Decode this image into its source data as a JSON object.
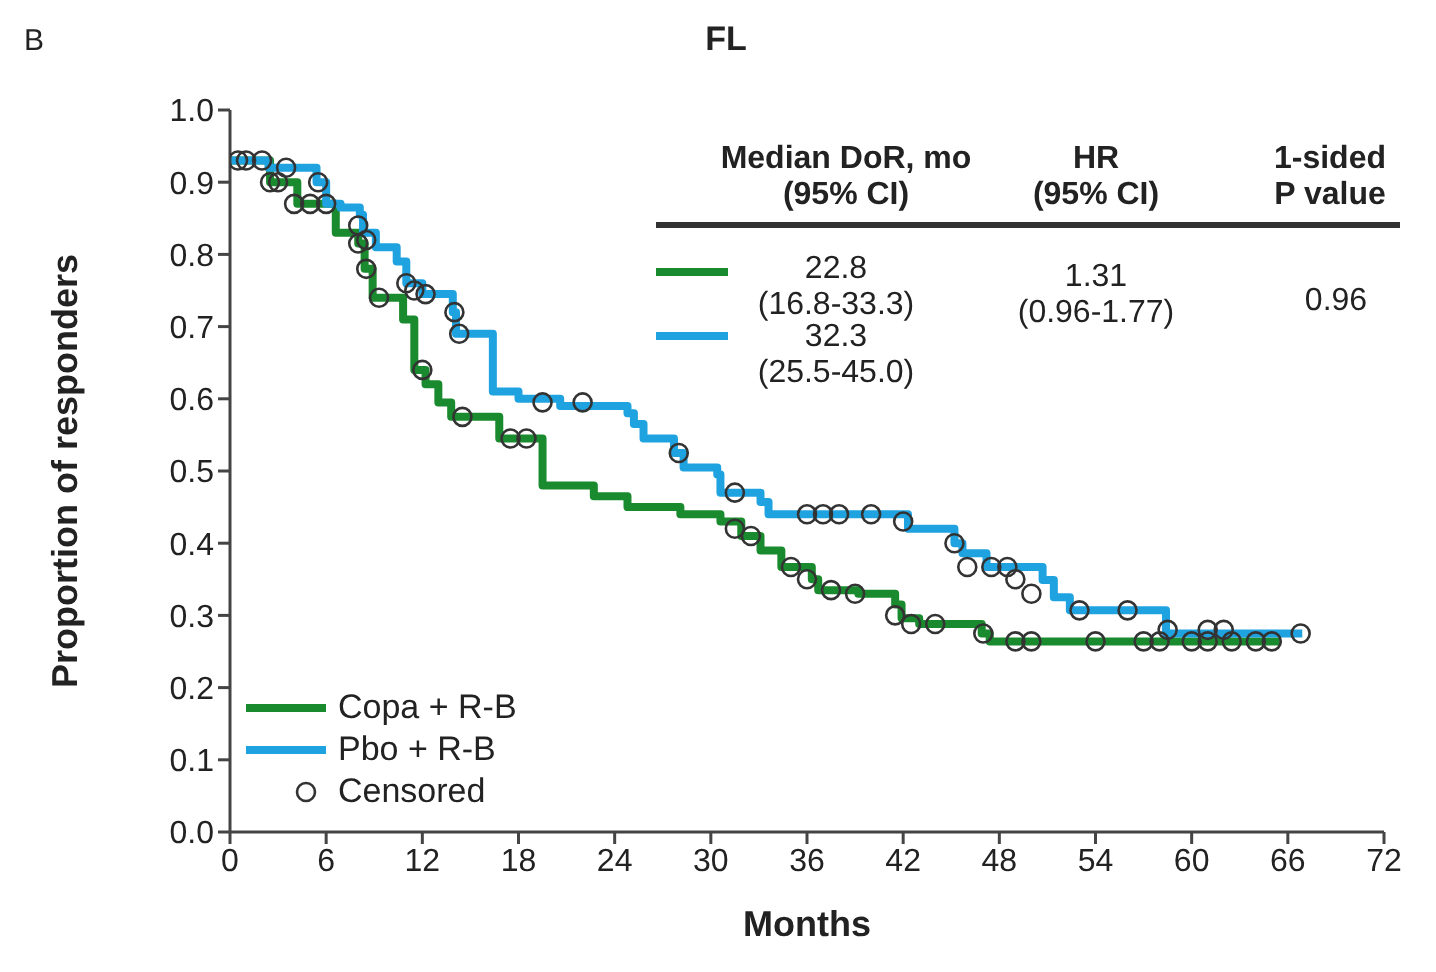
{
  "chart_data": {
    "type": "step",
    "title": "FL",
    "xlabel": "Months",
    "ylabel": "Proportion of responders",
    "annotations": [
      "B",
      "Median DoR, mo\n(95% CI)",
      "HR\n(95% CI)",
      "1-sided\nP value",
      "22.8\n(16.8-33.3)",
      "32.3\n(25.5-45.0)",
      "1.31\n(0.96-1.77)",
      "0.96"
    ],
    "xlim": [
      0,
      72
    ],
    "xticks": [
      0,
      6,
      12,
      18,
      24,
      30,
      36,
      42,
      48,
      54,
      60,
      66,
      72
    ],
    "ylim": [
      0,
      1
    ],
    "yticks": [
      {
        "value": 0,
        "label": "0.0"
      },
      0.1,
      0.2,
      0.3,
      0.4,
      0.5,
      0.6,
      0.7,
      0.8,
      0.9,
      {
        "value": 1,
        "label": "1.0"
      }
    ],
    "grid": false,
    "legend": "bottom left",
    "line_style": "solid",
    "series": [
      {
        "name": "Copa + R-B",
        "color": "#1a8a2e",
        "marker": "none",
        "x": [
          0,
          2.5,
          4.2,
          6.6,
          8,
          8.4,
          8.9,
          10.8,
          11.5,
          12.2,
          13,
          13.8,
          16.8,
          19.5,
          22.7,
          24.8,
          28.1,
          30.6,
          31.9,
          33.1,
          34.4,
          36.3,
          36.7,
          39.2,
          41.5,
          41.9,
          43,
          46.9,
          47.4,
          65.5
        ],
        "values": [
          0.93,
          0.9,
          0.87,
          0.83,
          0.815,
          0.78,
          0.74,
          0.71,
          0.64,
          0.62,
          0.595,
          0.575,
          0.545,
          0.48,
          0.465,
          0.45,
          0.44,
          0.43,
          0.41,
          0.39,
          0.367,
          0.35,
          0.335,
          0.33,
          0.315,
          0.296,
          0.288,
          0.275,
          0.264,
          0.264
        ]
      },
      {
        "name": "Pbo + R-B",
        "color": "#1fa3e0",
        "marker": "none",
        "x": [
          0,
          2.4,
          5.4,
          6,
          6.9,
          8.1,
          8.3,
          9.1,
          10.4,
          11,
          12,
          13.9,
          14.1,
          16.4,
          18,
          20.6,
          24.8,
          25.2,
          25.8,
          27.7,
          28.3,
          30.4,
          30.6,
          33.1,
          33.6,
          42.3,
          45.2,
          45.7,
          47.2,
          50.7,
          51.4,
          52.4,
          58.4,
          66.9
        ],
        "values": [
          0.93,
          0.92,
          0.9,
          0.87,
          0.865,
          0.855,
          0.83,
          0.81,
          0.79,
          0.76,
          0.745,
          0.72,
          0.69,
          0.61,
          0.6,
          0.59,
          0.58,
          0.565,
          0.545,
          0.525,
          0.505,
          0.495,
          0.47,
          0.457,
          0.44,
          0.42,
          0.4,
          0.386,
          0.367,
          0.349,
          0.325,
          0.307,
          0.275,
          0.275
        ]
      },
      {
        "name": "Censored",
        "color": "#333333",
        "type": "scatter",
        "marker": "circle",
        "x": [
          0.5,
          2.5,
          3,
          4,
          5,
          8,
          8.5,
          9.3,
          12,
          14.5,
          17.5,
          18.5,
          31.5,
          32.5,
          35,
          36,
          37.5,
          39,
          41.5,
          42.5,
          44,
          47,
          49,
          50,
          54,
          57,
          58,
          60,
          61,
          62.5,
          64,
          65,
          1,
          2,
          3.5,
          5.5,
          6,
          8,
          8.5,
          11,
          11.5,
          12.2,
          14,
          14.3,
          19.5,
          22,
          28,
          31.5,
          36,
          37,
          38,
          40,
          42,
          45.2,
          46,
          47.5,
          48.5,
          49,
          50,
          53,
          56,
          58.5,
          61,
          62,
          66.8
        ],
        "values": [
          0.93,
          0.9,
          0.9,
          0.87,
          0.87,
          0.815,
          0.78,
          0.74,
          0.64,
          0.575,
          0.545,
          0.545,
          0.42,
          0.41,
          0.367,
          0.35,
          0.335,
          0.33,
          0.3,
          0.288,
          0.288,
          0.275,
          0.264,
          0.264,
          0.264,
          0.264,
          0.264,
          0.264,
          0.264,
          0.264,
          0.264,
          0.264,
          0.93,
          0.93,
          0.92,
          0.9,
          0.87,
          0.84,
          0.82,
          0.76,
          0.75,
          0.745,
          0.72,
          0.69,
          0.595,
          0.595,
          0.525,
          0.47,
          0.44,
          0.44,
          0.44,
          0.44,
          0.43,
          0.4,
          0.367,
          0.367,
          0.367,
          0.35,
          0.33,
          0.307,
          0.307,
          0.28,
          0.28,
          0.28,
          0.275
        ]
      }
    ]
  }
}
